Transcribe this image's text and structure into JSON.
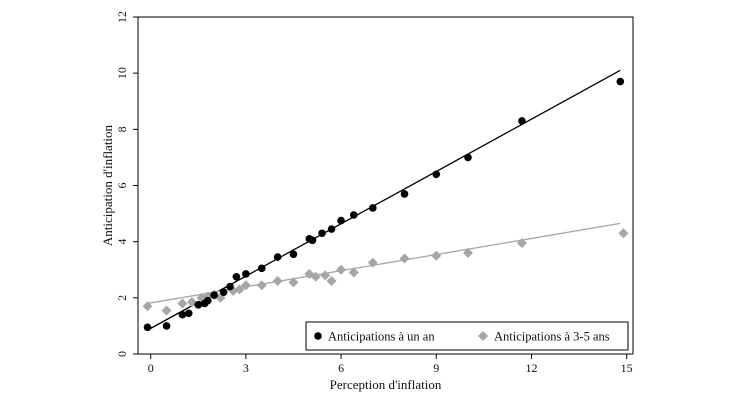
{
  "chart_data": {
    "type": "scatter",
    "title": "",
    "xlabel": "Perception d'inflation",
    "ylabel": "Anticipation d'inflation",
    "xlim": [
      -0.4,
      15.2
    ],
    "ylim": [
      0,
      12
    ],
    "xticks": [
      0,
      3,
      6,
      9,
      12,
      15
    ],
    "yticks": [
      0,
      2,
      4,
      6,
      8,
      10,
      12
    ],
    "grid": false,
    "legend_position": "bottom-right",
    "series": [
      {
        "name": "Anticipations à  un an",
        "marker": "circle",
        "color": "#000000",
        "x": [
          -0.1,
          0.5,
          1.0,
          1.2,
          1.5,
          1.7,
          1.8,
          2.0,
          2.3,
          2.5,
          2.7,
          3.0,
          3.5,
          4.0,
          4.5,
          5.0,
          5.1,
          5.4,
          5.7,
          6.0,
          6.4,
          7.0,
          8.0,
          9.0,
          10.0,
          11.7,
          14.8
        ],
        "y": [
          0.95,
          1.0,
          1.4,
          1.45,
          1.75,
          1.8,
          1.9,
          2.1,
          2.2,
          2.4,
          2.75,
          2.85,
          3.05,
          3.45,
          3.55,
          4.1,
          4.05,
          4.3,
          4.45,
          4.75,
          4.95,
          5.2,
          5.7,
          6.4,
          7.0,
          8.3,
          9.7
        ]
      },
      {
        "name": "Anticipations à 3-5 ans",
        "marker": "diamond",
        "color": "#a6a6a6",
        "x": [
          -0.1,
          0.5,
          1.0,
          1.3,
          1.6,
          1.8,
          2.0,
          2.2,
          2.6,
          2.8,
          3.0,
          3.5,
          4.0,
          4.5,
          5.0,
          5.2,
          5.5,
          5.7,
          6.0,
          6.4,
          7.0,
          8.0,
          9.0,
          10.0,
          11.7,
          14.9
        ],
        "y": [
          1.7,
          1.55,
          1.8,
          1.85,
          2.0,
          2.05,
          2.1,
          2.0,
          2.25,
          2.3,
          2.45,
          2.45,
          2.6,
          2.55,
          2.85,
          2.75,
          2.8,
          2.6,
          3.0,
          2.9,
          3.25,
          3.4,
          3.5,
          3.6,
          3.95,
          4.3
        ]
      }
    ],
    "fit_lines": [
      {
        "series": "Anticipations à  un an",
        "color": "#000000",
        "x": [
          -0.1,
          14.8
        ],
        "y": [
          0.85,
          10.1
        ]
      },
      {
        "series": "Anticipations à 3-5 ans",
        "color": "#a6a6a6",
        "x": [
          -0.1,
          14.8
        ],
        "y": [
          1.8,
          4.65
        ]
      }
    ]
  }
}
